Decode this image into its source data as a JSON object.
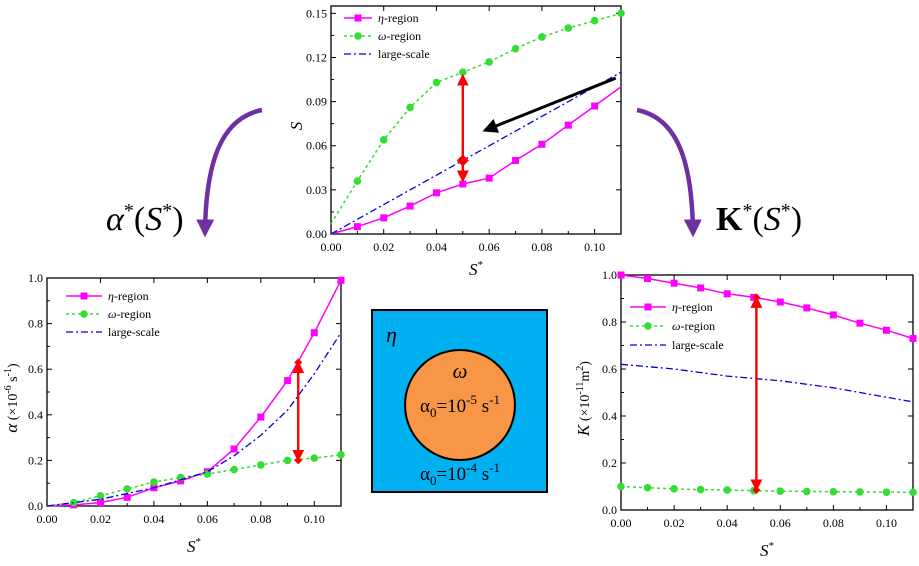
{
  "colors": {
    "eta": "#ff00ff",
    "omega": "#33dd33",
    "large": "#0000dd",
    "arrow_red": "#ff0000",
    "arrow_purple": "#7030a0",
    "arrow_black": "#000000",
    "schematic_bg": "#00b0f0",
    "schematic_circle": "#f79646"
  },
  "side_labels": {
    "alpha_fn": {
      "base": "α",
      "sup1": "*",
      "open": "(",
      "arg": "S",
      "sup2": "*",
      "close": ")"
    },
    "k_fn": {
      "base": "K",
      "sup1": "*",
      "open": "(",
      "arg": "S",
      "sup2": "*",
      "close": ")"
    }
  },
  "schematic": {
    "eta": "η",
    "omega": "ω",
    "alpha_inner": {
      "a": "α",
      "sub": "0",
      "eq": "=10",
      "exp": "-5",
      "unit": " s",
      "unit_exp": "-1"
    },
    "alpha_outer": {
      "a": "α",
      "sub": "0",
      "eq": "=10",
      "exp": "-4",
      "unit": " s",
      "unit_exp": "-1"
    }
  },
  "chart_data": [
    {
      "id": "top",
      "type": "line",
      "xlabel": {
        "main": "S",
        "sup": "*"
      },
      "ylabel": {
        "main": "S"
      },
      "xlim": [
        0,
        0.11
      ],
      "ylim": [
        0,
        0.155
      ],
      "xticks": [
        0.0,
        0.02,
        0.04,
        0.06,
        0.08,
        0.1
      ],
      "xtick_labels": [
        "0.00",
        "0.02",
        "0.04",
        "0.06",
        "0.08",
        "0.10"
      ],
      "yticks": [
        0.0,
        0.03,
        0.06,
        0.09,
        0.12,
        0.15
      ],
      "ytick_labels": [
        "0.00",
        "0.03",
        "0.06",
        "0.09",
        "0.12",
        "0.15"
      ],
      "legend_position": "top-left",
      "series": [
        {
          "name": "η-region",
          "sym": "η",
          "suffix": "-region",
          "style": "eta",
          "x": [
            0,
            0.01,
            0.02,
            0.03,
            0.04,
            0.05,
            0.06,
            0.07,
            0.08,
            0.09,
            0.1,
            0.11
          ],
          "y": [
            0,
            0.005,
            0.011,
            0.019,
            0.028,
            0.034,
            0.038,
            0.05,
            0.061,
            0.074,
            0.087,
            0.1
          ],
          "marker_until": 0.1
        },
        {
          "name": "ω-region",
          "sym": "ω",
          "suffix": "-region",
          "style": "omega",
          "x": [
            0,
            0.01,
            0.02,
            0.03,
            0.04,
            0.05,
            0.06,
            0.07,
            0.08,
            0.09,
            0.1,
            0.11
          ],
          "y": [
            0.007,
            0.036,
            0.064,
            0.086,
            0.103,
            0.11,
            0.117,
            0.126,
            0.134,
            0.14,
            0.145,
            0.15
          ]
        },
        {
          "name": "large-scale",
          "sym": "",
          "suffix": "large-scale",
          "style": "large",
          "x": [
            0,
            0.11
          ],
          "y": [
            0,
            0.11
          ]
        }
      ],
      "annotations": {
        "red_arrow": {
          "x": 0.05,
          "y_top": 0.108,
          "y_mid": 0.05,
          "y_bot": 0.036
        },
        "black_arrow": {
          "x_from": 0.108,
          "y_from": 0.106,
          "x_to": 0.0585,
          "y_to": 0.0705
        }
      }
    },
    {
      "id": "alpha",
      "type": "line",
      "xlabel": {
        "main": "S",
        "sup": "*"
      },
      "ylabel": {
        "main": "α",
        "paren": " (×10",
        "exp": "-6",
        "unit": " s",
        "unit_exp": "-1",
        "close": ")"
      },
      "xlim": [
        0,
        0.11
      ],
      "ylim": [
        0,
        1.0
      ],
      "xticks": [
        0.0,
        0.02,
        0.04,
        0.06,
        0.08,
        0.1
      ],
      "xtick_labels": [
        "0.00",
        "0.02",
        "0.04",
        "0.06",
        "0.08",
        "0.10"
      ],
      "yticks": [
        0.0,
        0.2,
        0.4,
        0.6,
        0.8,
        1.0
      ],
      "ytick_labels": [
        "0.0",
        "0.2",
        "0.4",
        "0.6",
        "0.8",
        "1.0"
      ],
      "legend_position": "top-left",
      "series": [
        {
          "name": "η-region",
          "sym": "η",
          "suffix": "-region",
          "style": "eta",
          "x": [
            0,
            0.01,
            0.02,
            0.03,
            0.04,
            0.05,
            0.06,
            0.07,
            0.08,
            0.09,
            0.1,
            0.11
          ],
          "y": [
            0,
            0.005,
            0.015,
            0.038,
            0.08,
            0.11,
            0.15,
            0.25,
            0.39,
            0.55,
            0.76,
            0.99
          ]
        },
        {
          "name": "ω-region",
          "sym": "ω",
          "suffix": "-region",
          "style": "omega",
          "x": [
            0,
            0.01,
            0.02,
            0.03,
            0.04,
            0.05,
            0.06,
            0.07,
            0.08,
            0.09,
            0.1,
            0.11
          ],
          "y": [
            0,
            0.015,
            0.045,
            0.075,
            0.105,
            0.125,
            0.14,
            0.16,
            0.18,
            0.2,
            0.21,
            0.225
          ]
        },
        {
          "name": "large-scale",
          "sym": "",
          "suffix": "large-scale",
          "style": "large",
          "x": [
            0,
            0.02,
            0.04,
            0.06,
            0.07,
            0.08,
            0.09,
            0.1,
            0.11
          ],
          "y": [
            0,
            0.03,
            0.08,
            0.15,
            0.22,
            0.31,
            0.42,
            0.58,
            0.76
          ]
        }
      ],
      "annotations": {
        "red_arrow": {
          "x": 0.094,
          "y_top": 0.63,
          "y_mid": 0.51,
          "y_bot": 0.2
        }
      }
    },
    {
      "id": "k",
      "type": "line",
      "xlabel": {
        "main": "S",
        "sup": "*"
      },
      "ylabel": {
        "main": "K",
        "paren": " (×10",
        "exp": "-11",
        "unit": "m",
        "unit_exp": "2",
        "close": ")"
      },
      "xlim": [
        0,
        0.11
      ],
      "ylim": [
        0,
        1.0
      ],
      "xticks": [
        0.0,
        0.02,
        0.04,
        0.06,
        0.08,
        0.1
      ],
      "xtick_labels": [
        "0.00",
        "0.02",
        "0.04",
        "0.06",
        "0.08",
        "0.10"
      ],
      "yticks": [
        0.0,
        0.2,
        0.4,
        0.6,
        0.8,
        1.0
      ],
      "ytick_labels": [
        "0.0",
        "0.2",
        "0.4",
        "0.6",
        "0.8",
        "1.0"
      ],
      "legend_position": "top-left",
      "series": [
        {
          "name": "η-region",
          "sym": "η",
          "suffix": "-region",
          "style": "eta",
          "x": [
            0,
            0.01,
            0.02,
            0.03,
            0.04,
            0.05,
            0.06,
            0.07,
            0.08,
            0.09,
            0.1,
            0.11
          ],
          "y": [
            1.0,
            0.985,
            0.965,
            0.945,
            0.92,
            0.905,
            0.885,
            0.86,
            0.83,
            0.795,
            0.765,
            0.73
          ]
        },
        {
          "name": "ω-region",
          "sym": "ω",
          "suffix": "-region",
          "style": "omega",
          "x": [
            0,
            0.01,
            0.02,
            0.03,
            0.04,
            0.05,
            0.06,
            0.07,
            0.08,
            0.09,
            0.1,
            0.11
          ],
          "y": [
            0.1,
            0.095,
            0.09,
            0.087,
            0.085,
            0.082,
            0.08,
            0.079,
            0.078,
            0.077,
            0.076,
            0.075
          ]
        },
        {
          "name": "large-scale",
          "sym": "",
          "suffix": "large-scale",
          "style": "large",
          "x": [
            0,
            0.02,
            0.04,
            0.06,
            0.08,
            0.1,
            0.11
          ],
          "y": [
            0.62,
            0.6,
            0.57,
            0.55,
            0.52,
            0.48,
            0.46
          ]
        }
      ],
      "annotations": {
        "red_arrow": {
          "x": 0.051,
          "y_top": 0.905,
          "y_mid": 0.56,
          "y_bot": 0.085
        }
      }
    }
  ]
}
